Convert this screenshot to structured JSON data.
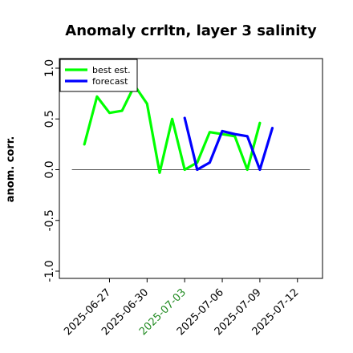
{
  "chart_data": {
    "type": "line",
    "title": "Anomaly crrltn, layer 3 salinity",
    "ylabel": "anom. corr.",
    "xlabel": "",
    "ylim": [
      -1.0,
      1.0
    ],
    "yticks": [
      -1.0,
      -0.5,
      0.0,
      0.5,
      1.0
    ],
    "ytick_labels": [
      "-1.0",
      "-0.5",
      "0.0",
      "0.5",
      "1.0"
    ],
    "xlim": [
      "2025-06-23",
      "2025-07-14"
    ],
    "xticks": [
      "2025-06-27",
      "2025-06-30",
      "2025-07-03",
      "2025-07-06",
      "2025-07-09",
      "2025-07-12"
    ],
    "xtick_colors": [
      "#000000",
      "#000000",
      "#228B22",
      "#000000",
      "#000000",
      "#000000"
    ],
    "zero_line": {
      "y": 0.0,
      "from": "2025-06-24",
      "to": "2025-07-13"
    },
    "grid": false,
    "legend": {
      "placement": "top-left"
    },
    "series": [
      {
        "name": "best est.",
        "color": "#00ff00",
        "x": [
          "2025-06-25",
          "2025-06-26",
          "2025-06-27",
          "2025-06-28",
          "2025-06-29",
          "2025-06-30",
          "2025-07-01",
          "2025-07-02",
          "2025-07-03",
          "2025-07-04",
          "2025-07-05",
          "2025-07-06",
          "2025-07-07",
          "2025-07-08",
          "2025-07-09",
          "2025-07-10"
        ],
        "values": [
          0.25,
          0.72,
          0.56,
          0.58,
          0.83,
          0.65,
          -0.03,
          0.5,
          0.0,
          0.07,
          0.37,
          0.35,
          0.33,
          0.0,
          0.46,
          null
        ]
      },
      {
        "name": "forecast",
        "color": "#0000ff",
        "x": [
          "2025-07-03",
          "2025-07-04",
          "2025-07-05",
          "2025-07-06",
          "2025-07-07",
          "2025-07-08",
          "2025-07-09",
          "2025-07-10"
        ],
        "values": [
          0.51,
          0.0,
          0.07,
          0.38,
          0.35,
          0.33,
          0.0,
          0.41
        ]
      }
    ]
  }
}
